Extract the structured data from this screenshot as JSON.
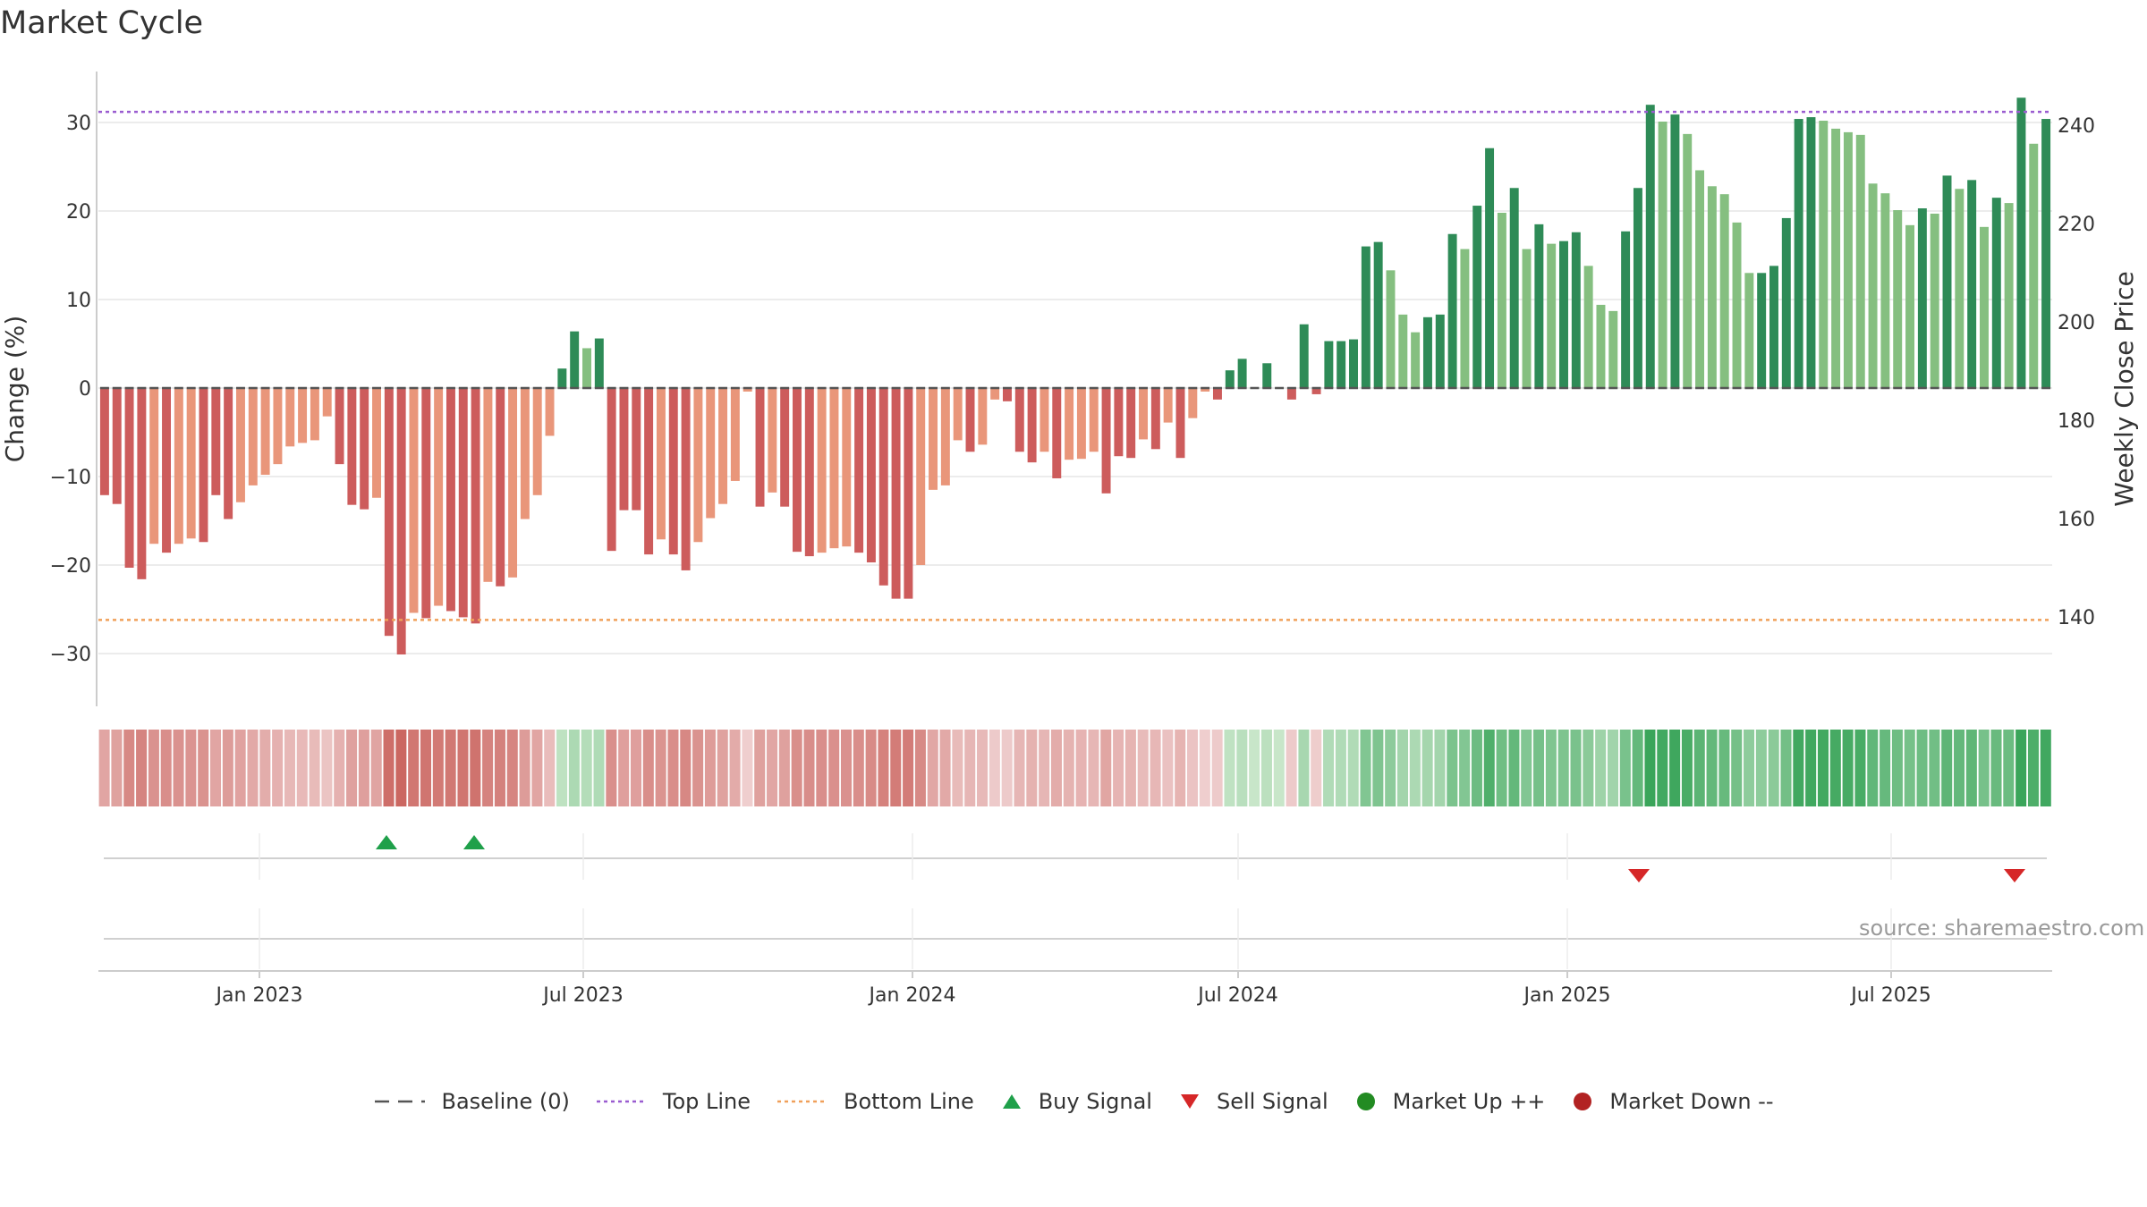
{
  "title": "Market Cycle",
  "source": "source: sharemaestro.com",
  "colors": {
    "up_strong": "#2e8b57",
    "up_weak": "#85bf80",
    "down_strong": "#cd5c5c",
    "down_weak": "#e9967a",
    "top_line": "#9a5cd0",
    "bottom_line": "#f0a05a",
    "baseline": "#555555",
    "buy": "#1fa04a",
    "sell": "#d62728",
    "market_up": "#228b22",
    "market_down": "#b22222"
  },
  "legend": [
    {
      "label": "Baseline (0)",
      "icon": "dash-line-icon",
      "color": "#555555"
    },
    {
      "label": "Top Line",
      "icon": "dotted-line-icon",
      "color": "#9a5cd0"
    },
    {
      "label": "Bottom Line",
      "icon": "dotted-line-icon",
      "color": "#f0a05a"
    },
    {
      "label": "Buy Signal",
      "icon": "triangle-up-icon",
      "color": "#1fa04a"
    },
    {
      "label": "Sell Signal",
      "icon": "triangle-down-icon",
      "color": "#d62728"
    },
    {
      "label": "Market Up ++",
      "icon": "circle-icon",
      "color": "#228b22"
    },
    {
      "label": "Market Down --",
      "icon": "circle-icon",
      "color": "#b22222"
    }
  ],
  "chart_data": {
    "type": "bar",
    "title": "Market Cycle",
    "ylabel": "Change (%)",
    "y2label": "Weekly Close Price",
    "ylim": [
      -35,
      36
    ],
    "y2lim": [
      128,
      248
    ],
    "yticks": [
      -30,
      -20,
      -10,
      0,
      10,
      20,
      30
    ],
    "y2ticks": [
      140,
      160,
      180,
      200,
      220,
      240
    ],
    "x_range": [
      "2022-10-03",
      "2025-09-29"
    ],
    "xticks": [
      {
        "label": "Jan 2023",
        "date": "2023-01-01"
      },
      {
        "label": "Jul 2023",
        "date": "2023-07-01"
      },
      {
        "label": "Jan 2024",
        "date": "2024-01-01"
      },
      {
        "label": "Jul 2024",
        "date": "2024-07-01"
      },
      {
        "label": "Jan 2025",
        "date": "2025-01-01"
      },
      {
        "label": "Jul 2025",
        "date": "2025-07-01"
      }
    ],
    "top_line": 31.2,
    "bottom_line": -26.2,
    "baseline": 0,
    "grid": true,
    "legend_position": "bottom-center",
    "series": [
      {
        "name": "Change (%)",
        "start_date": "2022-10-03",
        "interval_days": 7,
        "values": [
          -12.1,
          -13.1,
          -20.3,
          -21.6,
          -17.6,
          -18.6,
          -17.6,
          -17.0,
          -17.4,
          -12.1,
          -14.8,
          -12.9,
          -11.0,
          -9.8,
          -8.6,
          -6.6,
          -6.2,
          -5.9,
          -3.2,
          -8.6,
          -13.2,
          -13.7,
          -12.4,
          -28.0,
          -30.1,
          -25.4,
          -26.0,
          -24.6,
          -25.2,
          -25.9,
          -26.6,
          -21.9,
          -22.4,
          -21.4,
          -14.8,
          -12.1,
          -5.4,
          2.2,
          6.4,
          4.5,
          5.6,
          -18.4,
          -13.8,
          -13.8,
          -18.8,
          -17.1,
          -18.8,
          -20.6,
          -17.4,
          -14.7,
          -13.1,
          -10.5,
          -0.4,
          -13.4,
          -11.8,
          -13.4,
          -18.5,
          -19.0,
          -18.6,
          -18.1,
          -17.9,
          -18.6,
          -19.7,
          -22.3,
          -23.8,
          -23.8,
          -20.0,
          -11.5,
          -11.0,
          -5.9,
          -7.2,
          -6.4,
          -1.3,
          -1.5,
          -7.2,
          -8.4,
          -7.2,
          -10.2,
          -8.1,
          -8.0,
          -7.2,
          -11.9,
          -7.7,
          -7.9,
          -5.8,
          -6.9,
          -3.9,
          -7.9,
          -3.4,
          -0.4,
          -1.3,
          2.0,
          3.3,
          0.0,
          2.8,
          0.0,
          -1.3,
          7.2,
          -0.7,
          5.3,
          5.3,
          5.5,
          16.0,
          16.5,
          13.3,
          8.3,
          6.3,
          8.0,
          8.3,
          17.4,
          15.7,
          20.6,
          27.1,
          19.8,
          22.6,
          15.7,
          18.5,
          16.3,
          16.6,
          17.6,
          13.8,
          9.4,
          8.7,
          17.7,
          22.6,
          32.0,
          30.1,
          30.9,
          28.7,
          24.6,
          22.8,
          21.9,
          18.7,
          13.0,
          13.0,
          13.8,
          19.2,
          30.4,
          30.6,
          30.2,
          29.3,
          28.9,
          28.6,
          23.1,
          22.0,
          20.1,
          18.4,
          20.3,
          19.7,
          24.0,
          22.5,
          23.5,
          18.2,
          21.5,
          20.9,
          32.8,
          27.6,
          30.4
        ],
        "emphasis": [
          1,
          1,
          1,
          1,
          0,
          1,
          0,
          0,
          1,
          1,
          1,
          0,
          0,
          0,
          0,
          0,
          0,
          0,
          0,
          1,
          1,
          1,
          0,
          1,
          1,
          0,
          1,
          0,
          1,
          1,
          1,
          0,
          1,
          0,
          0,
          0,
          0,
          1,
          1,
          0,
          1,
          1,
          1,
          1,
          1,
          0,
          1,
          1,
          0,
          0,
          0,
          0,
          0,
          1,
          0,
          1,
          1,
          1,
          0,
          0,
          0,
          1,
          1,
          1,
          1,
          1,
          0,
          0,
          0,
          0,
          1,
          0,
          0,
          1,
          1,
          1,
          0,
          1,
          0,
          0,
          0,
          1,
          1,
          1,
          0,
          1,
          0,
          1,
          0,
          0,
          1,
          1,
          1,
          0,
          1,
          0,
          1,
          1,
          1,
          1,
          1,
          1,
          1,
          1,
          0,
          0,
          0,
          1,
          1,
          1,
          0,
          1,
          1,
          0,
          1,
          0,
          1,
          0,
          1,
          1,
          0,
          0,
          0,
          1,
          1,
          1,
          0,
          1,
          0,
          0,
          0,
          0,
          0,
          0,
          1,
          1,
          1,
          1,
          1,
          0,
          0,
          0,
          0,
          0,
          0,
          0,
          0,
          1,
          0,
          1,
          0,
          1,
          0,
          1,
          0,
          1,
          0,
          1
        ]
      }
    ],
    "strip": {
      "type": "heatmap",
      "description_source": "value"
    },
    "signals": [
      {
        "type": "buy",
        "date": "2023-03-13"
      },
      {
        "type": "buy",
        "date": "2023-05-01"
      },
      {
        "type": "sell",
        "date": "2025-02-10"
      },
      {
        "type": "sell",
        "date": "2025-09-08"
      }
    ],
    "markers": []
  }
}
